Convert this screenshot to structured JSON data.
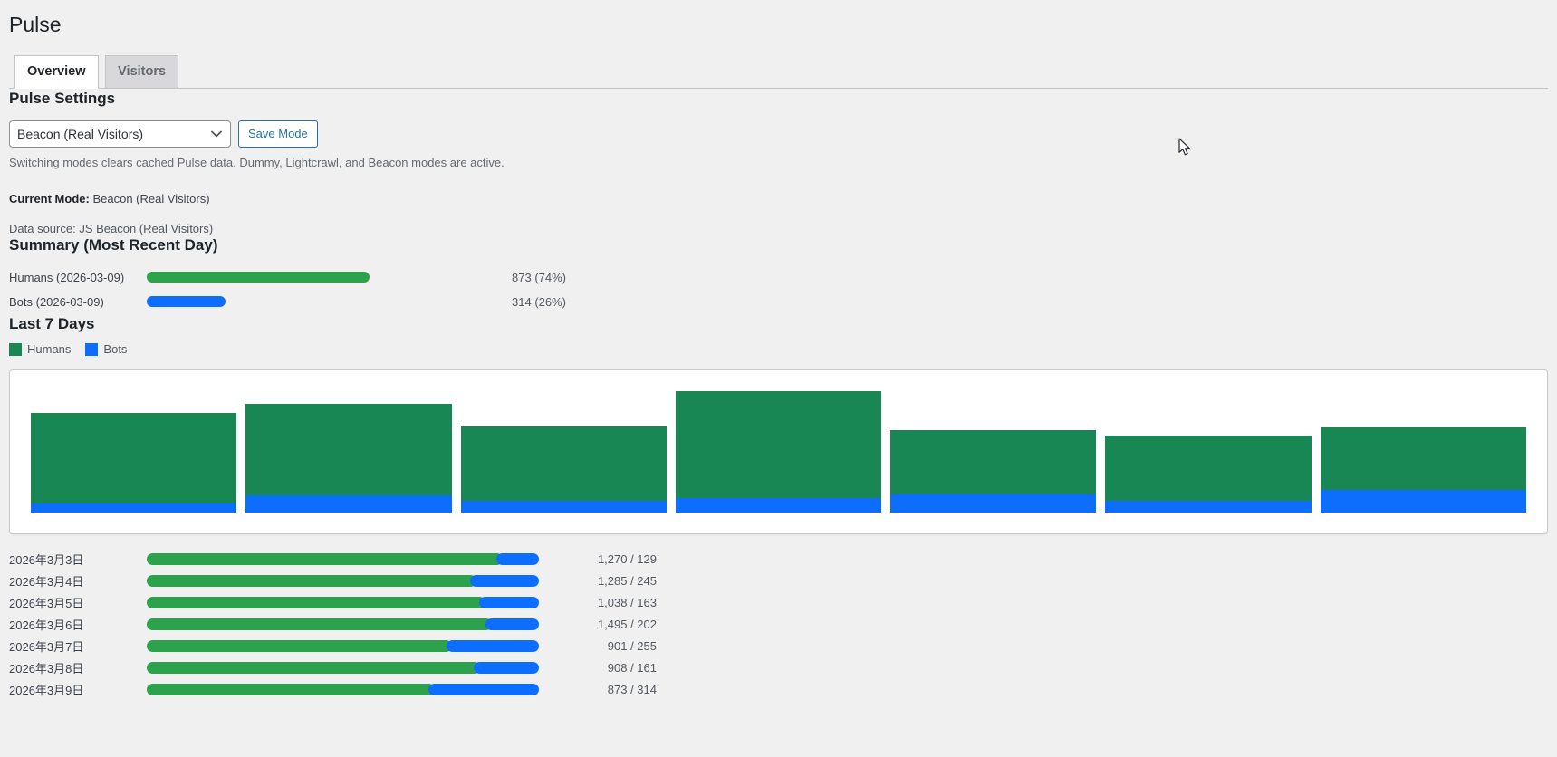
{
  "page": {
    "title": "Pulse",
    "background_color": "#f0f0f1"
  },
  "tabs": [
    {
      "label": "Overview",
      "active": true
    },
    {
      "label": "Visitors",
      "active": false
    }
  ],
  "settings": {
    "heading": "Pulse Settings",
    "mode_select": {
      "selected_value": "Beacon (Real Visitors)"
    },
    "save_button_label": "Save Mode",
    "description": "Switching modes clears cached Pulse data. Dummy, Lightcrawl, and Beacon modes are active.",
    "current_mode_label": "Current Mode:",
    "current_mode_value": "Beacon (Real Visitors)",
    "data_source_line": "Data source: JS Beacon (Real Visitors)"
  },
  "summary": {
    "heading": "Summary (Most Recent Day)",
    "rows": [
      {
        "label": "Humans (2026-03-09)",
        "percent": 74,
        "color": "#2da14c",
        "value_text": "873 (74%)"
      },
      {
        "label": "Bots (2026-03-09)",
        "percent": 26,
        "color": "#0d6efd",
        "value_text": "314 (26%)"
      }
    ]
  },
  "last7": {
    "heading": "Last 7 Days",
    "rows": [
      {
        "date": "2026年3月3日",
        "humans": 1270,
        "bots": 129,
        "value_text": "1,270 / 129"
      },
      {
        "date": "2026年3月4日",
        "humans": 1285,
        "bots": 245,
        "value_text": "1,285 / 245"
      },
      {
        "date": "2026年3月5日",
        "humans": 1038,
        "bots": 163,
        "value_text": "1,038 / 163"
      },
      {
        "date": "2026年3月6日",
        "humans": 1495,
        "bots": 202,
        "value_text": "1,495 / 202"
      },
      {
        "date": "2026年3月7日",
        "humans": 901,
        "bots": 255,
        "value_text": "901 / 255"
      },
      {
        "date": "2026年3月8日",
        "humans": 908,
        "bots": 161,
        "value_text": "908 / 161"
      },
      {
        "date": "2026年3月9日",
        "humans": 873,
        "bots": 314,
        "value_text": "873 / 314"
      }
    ]
  },
  "chart_data": {
    "type": "bar",
    "stacked": true,
    "title": "Last 7 Days",
    "categories": [
      "2026年3月3日",
      "2026年3月4日",
      "2026年3月5日",
      "2026年3月6日",
      "2026年3月7日",
      "2026年3月8日",
      "2026年3月9日"
    ],
    "series": [
      {
        "name": "Humans",
        "color": "#198754",
        "values": [
          1270,
          1285,
          1038,
          1495,
          901,
          908,
          873
        ]
      },
      {
        "name": "Bots",
        "color": "#0d6efd",
        "values": [
          129,
          245,
          163,
          202,
          255,
          161,
          314
        ]
      }
    ],
    "legend_position": "top-left",
    "axes_visible": false,
    "grid": false,
    "bar_order": "bots-on-bottom-humans-on-top"
  },
  "colors": {
    "chart_green": "#198754",
    "chart_blue": "#0d6efd",
    "pill_green": "#2da14c",
    "pill_blue": "#0d6efd",
    "wp_link_blue": "#2271b1"
  }
}
